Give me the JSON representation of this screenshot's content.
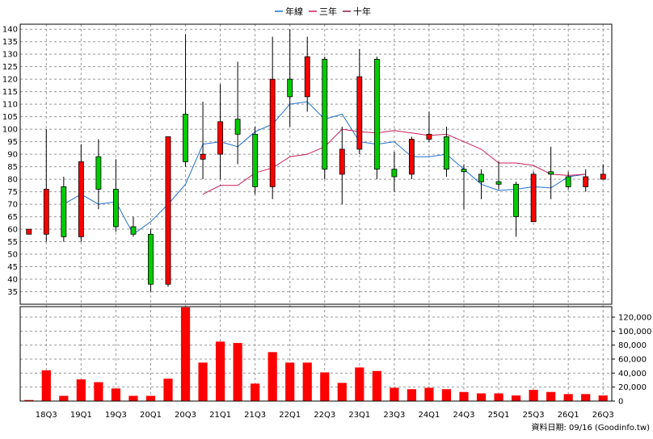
{
  "legend": [
    {
      "label": "年線",
      "color": "#1f6fd0"
    },
    {
      "label": "三年",
      "color": "#cc1f5a"
    },
    {
      "label": "十年",
      "color": "#8b1a3a"
    }
  ],
  "footer_note": "資料日期: 09/16 (Goodinfo.tw)",
  "colors": {
    "up": "#ff0000",
    "down": "#00cc00",
    "volume": "#ff0000",
    "grid": "#999999"
  },
  "chart_data": [
    {
      "type": "candlestick",
      "ylim": [
        30,
        142
      ],
      "grid": true,
      "yticks": [
        35,
        40,
        45,
        50,
        55,
        60,
        65,
        70,
        75,
        80,
        85,
        90,
        95,
        100,
        105,
        110,
        115,
        120,
        125,
        130,
        135,
        140
      ],
      "x_tick_labels": [
        "18Q3",
        "19Q1",
        "19Q3",
        "20Q1",
        "20Q3",
        "21Q1",
        "21Q3",
        "22Q1",
        "22Q3",
        "23Q1",
        "23Q3",
        "24Q1",
        "24Q3",
        "25Q1",
        "25Q3",
        "26Q1",
        "26Q3"
      ],
      "candles": [
        {
          "o": 58,
          "c": 60,
          "h": 60,
          "l": 58
        },
        {
          "o": 58,
          "c": 76,
          "h": 100,
          "l": 55
        },
        {
          "o": 77,
          "c": 57,
          "h": 81,
          "l": 55
        },
        {
          "o": 57,
          "c": 87,
          "h": 94,
          "l": 55
        },
        {
          "o": 89,
          "c": 76,
          "h": 96,
          "l": 68
        },
        {
          "o": 76,
          "c": 61,
          "h": 88,
          "l": 59
        },
        {
          "o": 61,
          "c": 58,
          "h": 65,
          "l": 57
        },
        {
          "o": 58,
          "c": 38,
          "h": 60,
          "l": 35
        },
        {
          "o": 38,
          "c": 97,
          "h": 97,
          "l": 37
        },
        {
          "o": 106,
          "c": 87,
          "h": 138,
          "l": 85
        },
        {
          "o": 88,
          "c": 90,
          "h": 111,
          "l": 80
        },
        {
          "o": 90,
          "c": 103,
          "h": 118,
          "l": 80
        },
        {
          "o": 104,
          "c": 98,
          "h": 127,
          "l": 86
        },
        {
          "o": 98,
          "c": 77,
          "h": 101,
          "l": 74
        },
        {
          "o": 77,
          "c": 120,
          "h": 137,
          "l": 72
        },
        {
          "o": 120,
          "c": 113,
          "h": 140,
          "l": 101
        },
        {
          "o": 113,
          "c": 129,
          "h": 137,
          "l": 107
        },
        {
          "o": 128,
          "c": 84,
          "h": 129,
          "l": 80
        },
        {
          "o": 82,
          "c": 92,
          "h": 101,
          "l": 70
        },
        {
          "o": 92,
          "c": 121,
          "h": 132,
          "l": 90
        },
        {
          "o": 128,
          "c": 84,
          "h": 129,
          "l": 80
        },
        {
          "o": 84,
          "c": 81,
          "h": 91,
          "l": 75
        },
        {
          "o": 82,
          "c": 96,
          "h": 97,
          "l": 80
        },
        {
          "o": 96,
          "c": 98,
          "h": 107,
          "l": 95
        },
        {
          "o": 97,
          "c": 84,
          "h": 101,
          "l": 81
        },
        {
          "o": 84,
          "c": 83,
          "h": 86,
          "l": 68
        },
        {
          "o": 82,
          "c": 79,
          "h": 84,
          "l": 72
        },
        {
          "o": 79,
          "c": 78,
          "h": 87,
          "l": 76
        },
        {
          "o": 78,
          "c": 65,
          "h": 79,
          "l": 57
        },
        {
          "o": 63,
          "c": 82,
          "h": 83,
          "l": 63
        },
        {
          "o": 83,
          "c": 82,
          "h": 93,
          "l": 72
        },
        {
          "o": 81,
          "c": 77,
          "h": 83,
          "l": 76
        },
        {
          "o": 77,
          "c": 81,
          "h": 84,
          "l": 75
        },
        {
          "o": 80,
          "c": 82,
          "h": 86,
          "l": 80
        }
      ],
      "series": [
        {
          "name": "年線",
          "points": [
            [
              2,
              70
            ],
            [
              3,
              74
            ],
            [
              4,
              70
            ],
            [
              5,
              71
            ],
            [
              6,
              58
            ],
            [
              7,
              63
            ],
            [
              8,
              70
            ],
            [
              9,
              78
            ],
            [
              10,
              94
            ],
            [
              11,
              95
            ],
            [
              12,
              93
            ],
            [
              13,
              99
            ],
            [
              14,
              102
            ],
            [
              15,
              110
            ],
            [
              16,
              111
            ],
            [
              17,
              104
            ],
            [
              18,
              106
            ],
            [
              19,
              95
            ],
            [
              20,
              94
            ],
            [
              21,
              95
            ],
            [
              22,
              89
            ],
            [
              23,
              89
            ],
            [
              24,
              90
            ],
            [
              25,
              84
            ],
            [
              26,
              78
            ],
            [
              27,
              75.5
            ],
            [
              28,
              76
            ],
            [
              29,
              77
            ],
            [
              30,
              76.5
            ],
            [
              31,
              81
            ],
            [
              32,
              82
            ]
          ]
        },
        {
          "name": "三年",
          "points": [
            [
              10,
              74
            ],
            [
              11,
              77.5
            ],
            [
              12,
              77.5
            ],
            [
              13,
              82.5
            ],
            [
              14,
              84.5
            ],
            [
              15,
              89
            ],
            [
              16,
              90
            ],
            [
              17,
              93
            ],
            [
              18,
              100
            ],
            [
              19,
              99
            ],
            [
              20,
              98.5
            ],
            [
              21,
              99.5
            ],
            [
              22,
              98.5
            ],
            [
              23,
              97.5
            ],
            [
              24,
              98
            ],
            [
              25,
              95
            ],
            [
              26,
              92
            ],
            [
              27,
              86.5
            ],
            [
              28,
              86.5
            ],
            [
              29,
              85.5
            ],
            [
              30,
              82
            ],
            [
              31,
              81.5
            ],
            [
              32,
              82
            ]
          ]
        },
        {
          "name": "十年",
          "points": []
        }
      ]
    },
    {
      "type": "bar",
      "ylim": [
        0,
        135000
      ],
      "yticks": [
        0,
        20000,
        40000,
        60000,
        80000,
        100000,
        120000
      ],
      "ytick_labels": [
        "0",
        "20,000",
        "40,000",
        "60,000",
        "80,000",
        "100,000",
        "120,000"
      ],
      "values": [
        1500,
        44000,
        7500,
        31000,
        27000,
        18000,
        7500,
        7500,
        32000,
        134000,
        55000,
        85000,
        83000,
        25000,
        70000,
        55000,
        55000,
        41000,
        26000,
        48000,
        43000,
        19000,
        17000,
        19000,
        17000,
        13000,
        11000,
        11000,
        8000,
        16000,
        13000,
        10000,
        10000,
        8000
      ]
    }
  ]
}
